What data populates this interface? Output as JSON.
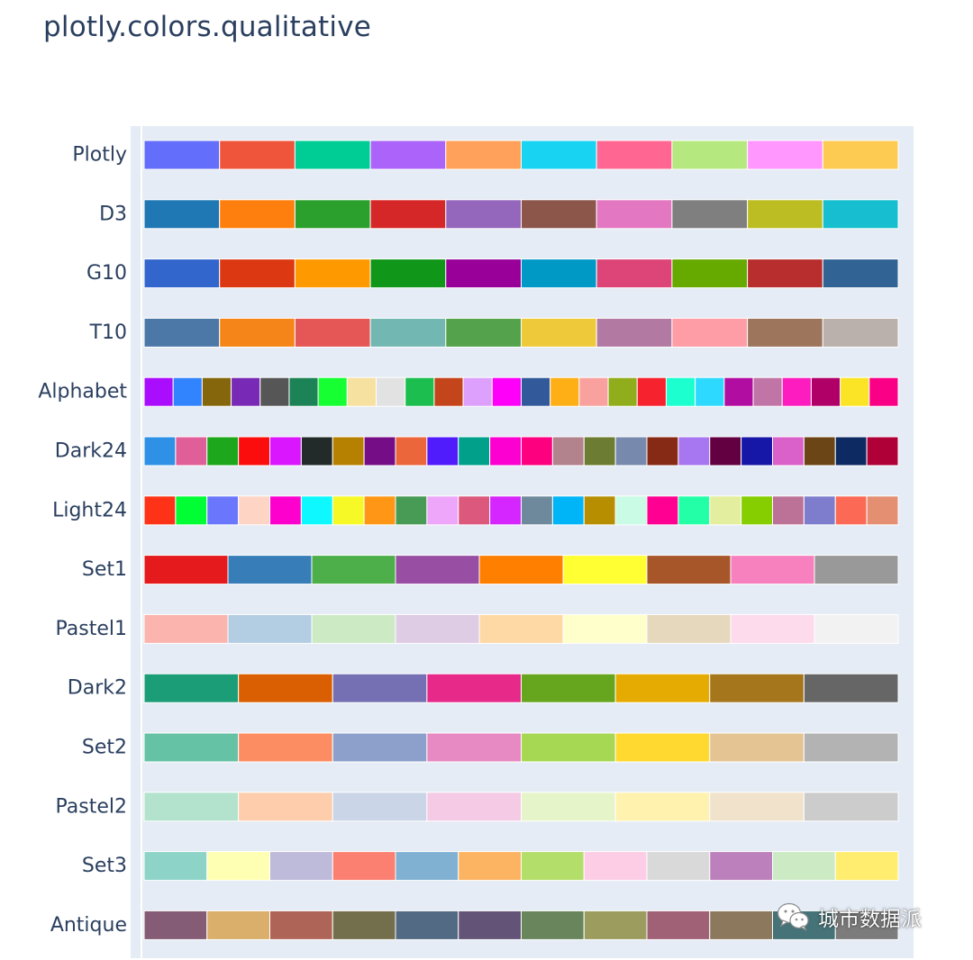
{
  "title": "plotly.colors.qualitative",
  "watermark": {
    "text": "城市数据派",
    "icon": "wechat-icon"
  },
  "colors": {
    "plot_background": "#e5ecf6",
    "title": "#2a3f5f",
    "label": "#2a3f5f"
  },
  "chart_data": {
    "type": "heatmap",
    "grid": false,
    "rows": [
      {
        "name": "Plotly",
        "colors": [
          "#636EFA",
          "#EF553B",
          "#00CC96",
          "#AB63FA",
          "#FFA15A",
          "#19D3F3",
          "#FF6692",
          "#B6E880",
          "#FF97FF",
          "#FECB52"
        ]
      },
      {
        "name": "D3",
        "colors": [
          "#1F77B4",
          "#FF7F0E",
          "#2CA02C",
          "#D62728",
          "#9467BD",
          "#8C564B",
          "#E377C2",
          "#7F7F7F",
          "#BCBD22",
          "#17BECF"
        ]
      },
      {
        "name": "G10",
        "colors": [
          "#3366CC",
          "#DC3912",
          "#FF9900",
          "#109618",
          "#990099",
          "#0099C6",
          "#DD4477",
          "#66AA00",
          "#B82E2E",
          "#316395"
        ]
      },
      {
        "name": "T10",
        "colors": [
          "#4C78A8",
          "#F58518",
          "#E45756",
          "#72B7B2",
          "#54A24B",
          "#EECA3B",
          "#B279A2",
          "#FF9DA6",
          "#9D755D",
          "#BAB0AC"
        ]
      },
      {
        "name": "Alphabet",
        "colors": [
          "#AA0DFE",
          "#3283FE",
          "#85660D",
          "#782AB6",
          "#565656",
          "#1C8356",
          "#16FF32",
          "#F7E1A0",
          "#E2E2E2",
          "#1CBE4F",
          "#C4451C",
          "#DEA0FD",
          "#FE00FA",
          "#325A9B",
          "#FEAF16",
          "#F8A19F",
          "#90AD1C",
          "#F6222E",
          "#1CFFCE",
          "#2ED9FF",
          "#B10DA1",
          "#C075A6",
          "#FC1CBF",
          "#B00068",
          "#FBE426",
          "#FA0087"
        ]
      },
      {
        "name": "Dark24",
        "colors": [
          "#2E91E5",
          "#E15F99",
          "#1CA71C",
          "#FB0D0D",
          "#DA16FF",
          "#222A2A",
          "#B68100",
          "#750D86",
          "#EB663B",
          "#511CFB",
          "#00A08B",
          "#FB00D1",
          "#FC0080",
          "#B2828D",
          "#6C7C32",
          "#778AAE",
          "#862A16",
          "#A777F1",
          "#620042",
          "#1616A7",
          "#DA60CA",
          "#6C4516",
          "#0D2A63",
          "#AF0038"
        ]
      },
      {
        "name": "Light24",
        "colors": [
          "#FD3216",
          "#00FE35",
          "#6A76FC",
          "#FED4C4",
          "#FE00CE",
          "#0DF9FF",
          "#F6F926",
          "#FF9616",
          "#479B55",
          "#EEA6FB",
          "#DC587D",
          "#D626FF",
          "#6E899C",
          "#00B5F7",
          "#B68E00",
          "#C9FBE5",
          "#FF0092",
          "#22FFA7",
          "#E3EE9E",
          "#86CE00",
          "#BC7196",
          "#7E7DCD",
          "#FC6955",
          "#E48F72"
        ]
      },
      {
        "name": "Set1",
        "colors": [
          "#E41A1C",
          "#377EB8",
          "#4DAF4A",
          "#984EA3",
          "#FF7F00",
          "#FFFF33",
          "#A65628",
          "#F781BF",
          "#999999"
        ]
      },
      {
        "name": "Pastel1",
        "colors": [
          "#FBB4AE",
          "#B3CDE3",
          "#CCEBC5",
          "#DECBE4",
          "#FED9A6",
          "#FFFFCC",
          "#E5D8BD",
          "#FDDAEC",
          "#F2F2F2"
        ]
      },
      {
        "name": "Dark2",
        "colors": [
          "#1B9E77",
          "#D95F02",
          "#7570B3",
          "#E7298A",
          "#66A61E",
          "#E6AB02",
          "#A6761D",
          "#666666"
        ]
      },
      {
        "name": "Set2",
        "colors": [
          "#66C2A5",
          "#FC8D62",
          "#8DA0CB",
          "#E78AC3",
          "#A6D854",
          "#FFD92F",
          "#E5C494",
          "#B3B3B3"
        ]
      },
      {
        "name": "Pastel2",
        "colors": [
          "#B3E2CD",
          "#FDCDAC",
          "#CBD5E8",
          "#F4CAE4",
          "#E6F5C9",
          "#FFF2AE",
          "#F1E2CC",
          "#CCCCCC"
        ]
      },
      {
        "name": "Set3",
        "colors": [
          "#8DD3C7",
          "#FFFFB3",
          "#BEBADA",
          "#FB8072",
          "#80B1D3",
          "#FDB462",
          "#B3DE69",
          "#FCCDE5",
          "#D9D9D9",
          "#BC80BD",
          "#CCEBC5",
          "#FFED6F"
        ]
      },
      {
        "name": "Antique",
        "colors": [
          "#855C75",
          "#D9AF6B",
          "#AF6458",
          "#736F4C",
          "#526A83",
          "#625377",
          "#68855C",
          "#9C9C5E",
          "#A06177",
          "#8C785D",
          "#467378",
          "#7C7C7C"
        ]
      }
    ]
  }
}
